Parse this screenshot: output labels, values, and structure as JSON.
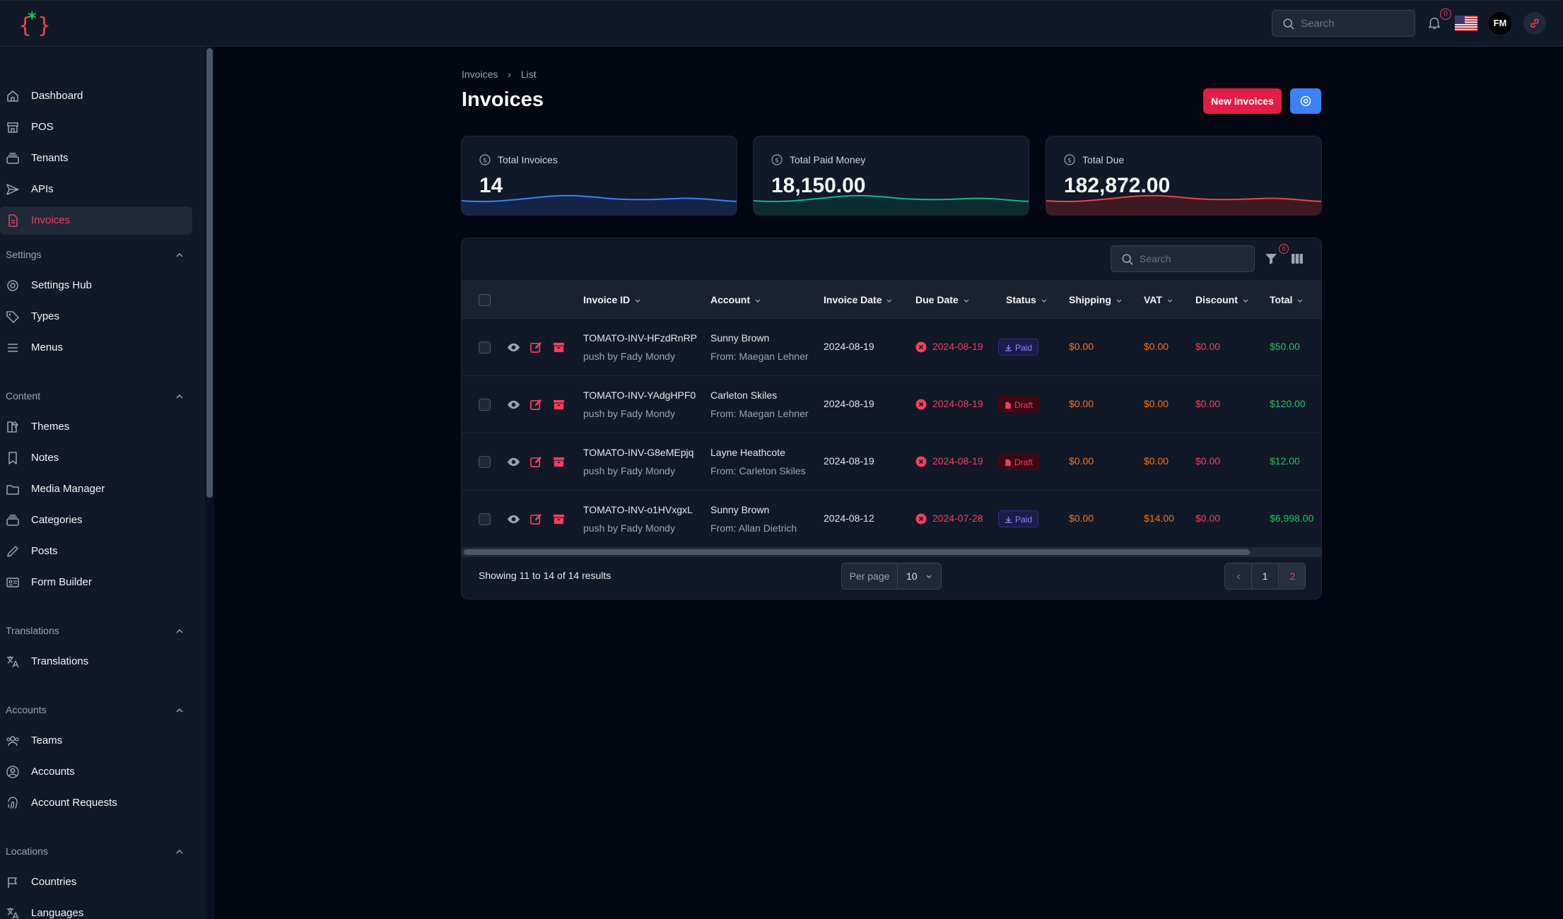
{
  "topbar": {
    "search_placeholder": "Search",
    "notification_count": "0",
    "avatar_initials": "FM"
  },
  "sidebar": {
    "items": [
      {
        "label": "Dashboard",
        "icon": "home-icon"
      },
      {
        "label": "POS",
        "icon": "store-icon"
      },
      {
        "label": "Tenants",
        "icon": "stack-icon"
      },
      {
        "label": "APIs",
        "icon": "send-icon"
      },
      {
        "label": "Invoices",
        "icon": "document-icon",
        "active": true
      }
    ],
    "groups": [
      {
        "label": "Settings",
        "items": [
          {
            "label": "Settings Hub",
            "icon": "gear-icon"
          },
          {
            "label": "Types",
            "icon": "tag-icon"
          },
          {
            "label": "Menus",
            "icon": "menu-icon"
          }
        ]
      },
      {
        "label": "Content",
        "items": [
          {
            "label": "Themes",
            "icon": "swatch-icon"
          },
          {
            "label": "Notes",
            "icon": "bookmark-icon"
          },
          {
            "label": "Media Manager",
            "icon": "folder-icon"
          },
          {
            "label": "Categories",
            "icon": "stack-icon"
          },
          {
            "label": "Posts",
            "icon": "pencil-icon"
          },
          {
            "label": "Form Builder",
            "icon": "id-card-icon"
          }
        ]
      },
      {
        "label": "Translations",
        "items": [
          {
            "label": "Translations",
            "icon": "language-icon"
          }
        ]
      },
      {
        "label": "Accounts",
        "items": [
          {
            "label": "Teams",
            "icon": "users-icon"
          },
          {
            "label": "Accounts",
            "icon": "user-circle-icon"
          },
          {
            "label": "Account Requests",
            "icon": "fingerprint-icon"
          }
        ]
      },
      {
        "label": "Locations",
        "items": [
          {
            "label": "Countries",
            "icon": "flag-icon"
          },
          {
            "label": "Languages",
            "icon": "language-icon"
          }
        ]
      }
    ]
  },
  "breadcrumb": {
    "root": "Invoices",
    "current": "List"
  },
  "page": {
    "title": "Invoices",
    "new_button": "New Invoices"
  },
  "stats": [
    {
      "label": "Total Invoices",
      "value": "14",
      "color": "#3b82f6"
    },
    {
      "label": "Total Paid Money",
      "value": "18,150.00",
      "color": "#10b981"
    },
    {
      "label": "Total Due",
      "value": "182,872.00",
      "color": "#ef4444"
    }
  ],
  "table": {
    "search_placeholder": "Search",
    "filter_count": "0",
    "columns": [
      "Invoice ID",
      "Account",
      "Invoice Date",
      "Due Date",
      "Status",
      "Shipping",
      "VAT",
      "Discount",
      "Total"
    ],
    "rows": [
      {
        "id": "TOMATO-INV-HFzdRnRP",
        "pushed_by": "push by Fady Mondy",
        "account": "Sunny Brown",
        "from": "From: Maegan Lehner",
        "invoice_date": "2024-08-19",
        "due_date": "2024-08-19",
        "status": "Paid",
        "shipping": "$0.00",
        "vat": "$0.00",
        "discount": "$0.00",
        "total": "$50.00"
      },
      {
        "id": "TOMATO-INV-YAdgHPF0",
        "pushed_by": "push by Fady Mondy",
        "account": "Carleton Skiles",
        "from": "From: Maegan Lehner",
        "invoice_date": "2024-08-19",
        "due_date": "2024-08-19",
        "status": "Draft",
        "shipping": "$0.00",
        "vat": "$0.00",
        "discount": "$0.00",
        "total": "$120.00"
      },
      {
        "id": "TOMATO-INV-G8eMEpjq",
        "pushed_by": "push by Fady Mondy",
        "account": "Layne Heathcote",
        "from": "From: Carleton Skiles",
        "invoice_date": "2024-08-19",
        "due_date": "2024-08-19",
        "status": "Draft",
        "shipping": "$0.00",
        "vat": "$0.00",
        "discount": "$0.00",
        "total": "$12.00"
      },
      {
        "id": "TOMATO-INV-o1HVxgxL",
        "pushed_by": "push by Fady Mondy",
        "account": "Sunny Brown",
        "from": "From: Allan Dietrich",
        "invoice_date": "2024-08-12",
        "due_date": "2024-07-28",
        "status": "Paid",
        "shipping": "$0.00",
        "vat": "$14.00",
        "discount": "$0.00",
        "total": "$6,998.00"
      }
    ]
  },
  "pagination": {
    "showing": "Showing 11 to 14 of 14 results",
    "per_page_label": "Per page",
    "per_page_value": "10",
    "pages": [
      "1",
      "2"
    ],
    "current_page": "2"
  }
}
